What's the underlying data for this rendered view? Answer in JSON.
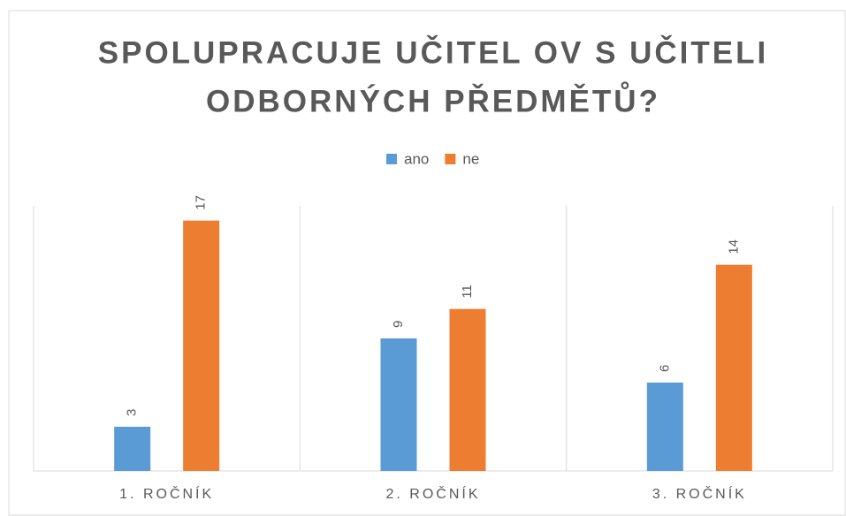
{
  "chart_data": {
    "type": "bar",
    "title": [
      "SPOLUPRACUJE UČITEL OV S UČITELI",
      "ODBORNÝCH PŘEDMĚTŮ?"
    ],
    "categories": [
      "1. ROČNÍK",
      "2. ROČNÍK",
      "3. ROČNÍK"
    ],
    "series": [
      {
        "name": "ano",
        "color": "#5b9bd5",
        "values": [
          3,
          9,
          6
        ]
      },
      {
        "name": "ne",
        "color": "#ed7d31",
        "values": [
          17,
          11,
          14
        ]
      }
    ],
    "ylim": [
      0,
      18
    ],
    "legend": "top"
  }
}
